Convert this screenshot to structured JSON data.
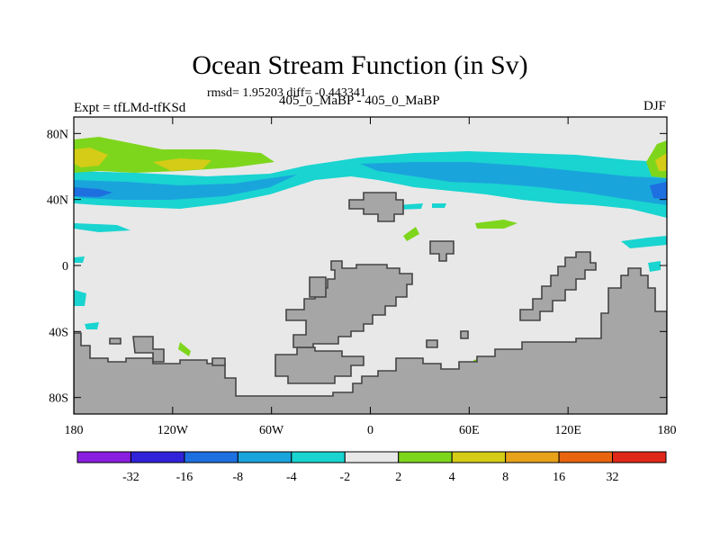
{
  "chart_data": {
    "type": "contour-map",
    "title": "Ocean Stream Function (in Sv)",
    "stats_label": "rmsd= 1.95203 diff= -0.443341",
    "left_label": "Expt = tfLMd-tfKSd",
    "center_label": "405_0_MaBP - 405_0_MaBP",
    "right_label": "DJF",
    "x_ticks": [
      "180",
      "120W",
      "60W",
      "0",
      "60E",
      "120E",
      "180"
    ],
    "y_ticks": [
      "80N",
      "40N",
      "0",
      "40S",
      "80S"
    ],
    "lon_range": [
      -180,
      180
    ],
    "lat_range": [
      -90,
      90
    ],
    "colorbar_labels": [
      "-32",
      "-16",
      "-8",
      "-4",
      "-2",
      "2",
      "4",
      "8",
      "16",
      "32"
    ],
    "colorbar_colors": [
      "#8a1fe0",
      "#3023d9",
      "#1e6fe0",
      "#1aa4dc",
      "#19d4d0",
      "#e8e8e8",
      "#7ed61c",
      "#d4cc16",
      "#e7a21a",
      "#e8640f",
      "#e0281a"
    ],
    "land_color": "#a6a6a6",
    "ocean_color": "#e8e8e8"
  }
}
